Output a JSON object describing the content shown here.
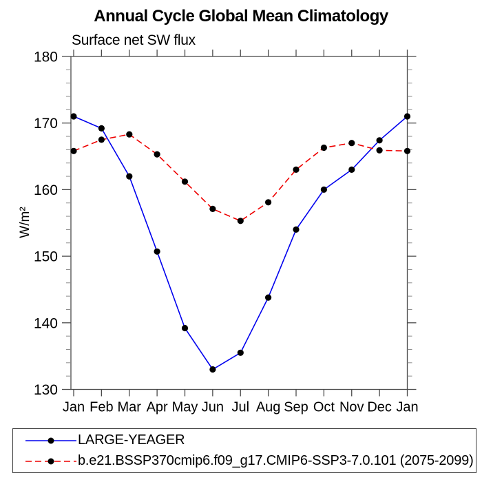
{
  "title": "Annual Cycle Global Mean Climatology",
  "subtitle": "Surface net SW flux",
  "chart_data": {
    "type": "line",
    "categories": [
      "Jan",
      "Feb",
      "Mar",
      "Apr",
      "May",
      "Jun",
      "Jul",
      "Aug",
      "Sep",
      "Oct",
      "Nov",
      "Dec",
      "Jan"
    ],
    "series": [
      {
        "name": "LARGE-YEAGER",
        "color": "#0000ee",
        "line_style": "solid",
        "marker": "filled-circle",
        "marker_color": "#000000",
        "values": [
          171.0,
          169.2,
          162.0,
          150.7,
          139.2,
          133.0,
          135.5,
          143.8,
          154.0,
          160.0,
          163.0,
          167.4,
          171.0
        ]
      },
      {
        "name": "b.e21.BSSP370cmip6.f09_g17.CMIP6-SSP3-7.0.101 (2075-2099)",
        "color": "#ee0000",
        "line_style": "dashed",
        "marker": "filled-circle",
        "marker_color": "#000000",
        "values": [
          165.8,
          167.5,
          168.3,
          165.3,
          161.2,
          157.1,
          155.3,
          158.1,
          163.0,
          166.3,
          167.0,
          165.9,
          165.8
        ]
      }
    ],
    "xlabel": "",
    "ylabel": "W/m²",
    "yticks": [
      130,
      140,
      150,
      160,
      170,
      180
    ],
    "ylim": [
      130,
      180
    ],
    "minor_tick_step": 2,
    "grid": false,
    "legend_position": "bottom-box",
    "axis_color": "#4a4a4a",
    "minor_tick_color": "#8a8a8a"
  }
}
